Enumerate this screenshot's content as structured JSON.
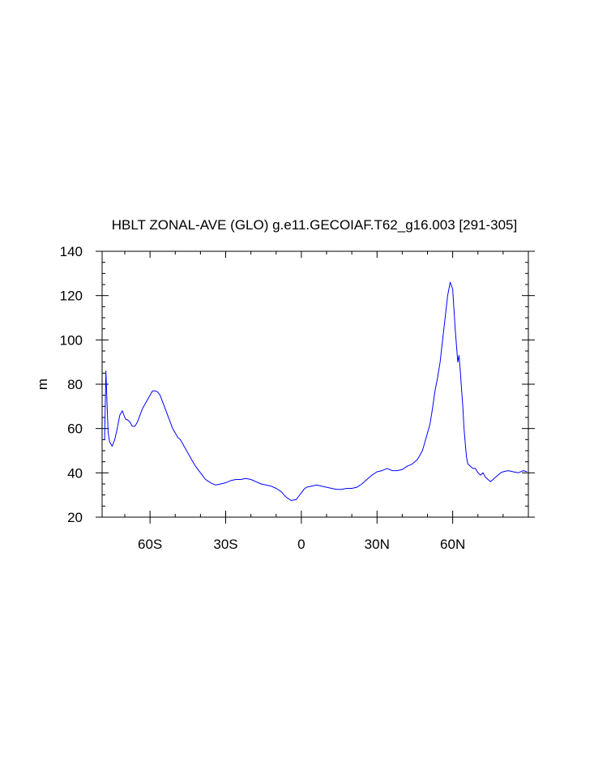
{
  "chart_data": {
    "type": "line",
    "title": "HBLT ZONAL-AVE (GLO) g.e11.GECOIAF.T62_g16.003 [291-305]",
    "xlabel": "",
    "ylabel": "m",
    "xlim": [
      -79,
      90
    ],
    "ylim": [
      20,
      140
    ],
    "yticks": [
      20,
      40,
      60,
      80,
      100,
      120,
      140
    ],
    "xticks": [
      {
        "value": -60,
        "label": "60S"
      },
      {
        "value": -30,
        "label": "30S"
      },
      {
        "value": 0,
        "label": "0"
      },
      {
        "value": 30,
        "label": "30N"
      },
      {
        "value": 60,
        "label": "60N"
      }
    ],
    "grid": false,
    "line_color": "#0000ff",
    "series": [
      {
        "x": [
          -78,
          -77.5,
          -77,
          -76.6,
          -76,
          -75,
          -74,
          -73,
          -72,
          -71,
          -70,
          -69.5,
          -69,
          -68,
          -67,
          -66,
          -65,
          -64,
          -63,
          -62,
          -61,
          -60,
          -59,
          -58,
          -57,
          -56,
          -55,
          -54,
          -53,
          -52,
          -51,
          -50,
          -49,
          -48,
          -47,
          -46,
          -45,
          -44,
          -43,
          -42,
          -40,
          -38,
          -36,
          -34,
          -32,
          -30,
          -28,
          -26,
          -24,
          -22,
          -20,
          -18,
          -16,
          -14,
          -12,
          -10,
          -8,
          -6,
          -4,
          -2,
          -1,
          0,
          1,
          2,
          4,
          6,
          8,
          10,
          12,
          14,
          16,
          18,
          20,
          22,
          24,
          26,
          28,
          30,
          32,
          34,
          36,
          38,
          40,
          42,
          44,
          46,
          48,
          49,
          50,
          51,
          52,
          53,
          54,
          55,
          56,
          57,
          58,
          59,
          60,
          61,
          62,
          62.5,
          63,
          63.5,
          64,
          64.5,
          65,
          65.5,
          66,
          67,
          68,
          69,
          70,
          71,
          72,
          73,
          74,
          75,
          76,
          77,
          78,
          79,
          80,
          82,
          84,
          86,
          88,
          89.5
        ],
        "y": [
          55,
          86,
          70,
          58,
          54,
          52,
          55,
          60,
          66,
          68,
          65,
          64,
          64,
          63,
          61,
          61,
          63,
          66,
          69,
          71,
          73,
          75,
          77,
          77,
          76.5,
          75,
          72,
          69,
          66,
          63,
          60,
          58,
          56,
          55,
          53,
          51,
          49,
          47,
          45,
          43,
          40,
          37,
          35.5,
          34.5,
          35,
          35.5,
          36.5,
          37,
          37,
          37.5,
          37,
          36,
          35,
          34.5,
          34,
          33,
          31.5,
          29,
          27.5,
          28,
          29.5,
          31,
          32.5,
          33.5,
          34,
          34.5,
          34,
          33.5,
          33,
          32.5,
          32.5,
          33,
          33,
          33.5,
          35,
          37,
          39,
          40.5,
          41,
          42,
          41,
          41,
          41.5,
          43,
          44,
          46,
          50,
          54,
          58,
          62,
          69,
          77,
          83,
          90,
          100,
          110,
          120,
          126,
          123,
          105,
          90,
          93,
          86,
          78,
          70,
          60,
          53,
          47,
          44,
          43,
          42,
          42,
          40,
          39,
          40,
          38,
          37,
          36,
          37,
          38,
          39,
          40,
          40.5,
          41,
          40.5,
          40,
          41,
          40.5
        ]
      }
    ]
  }
}
